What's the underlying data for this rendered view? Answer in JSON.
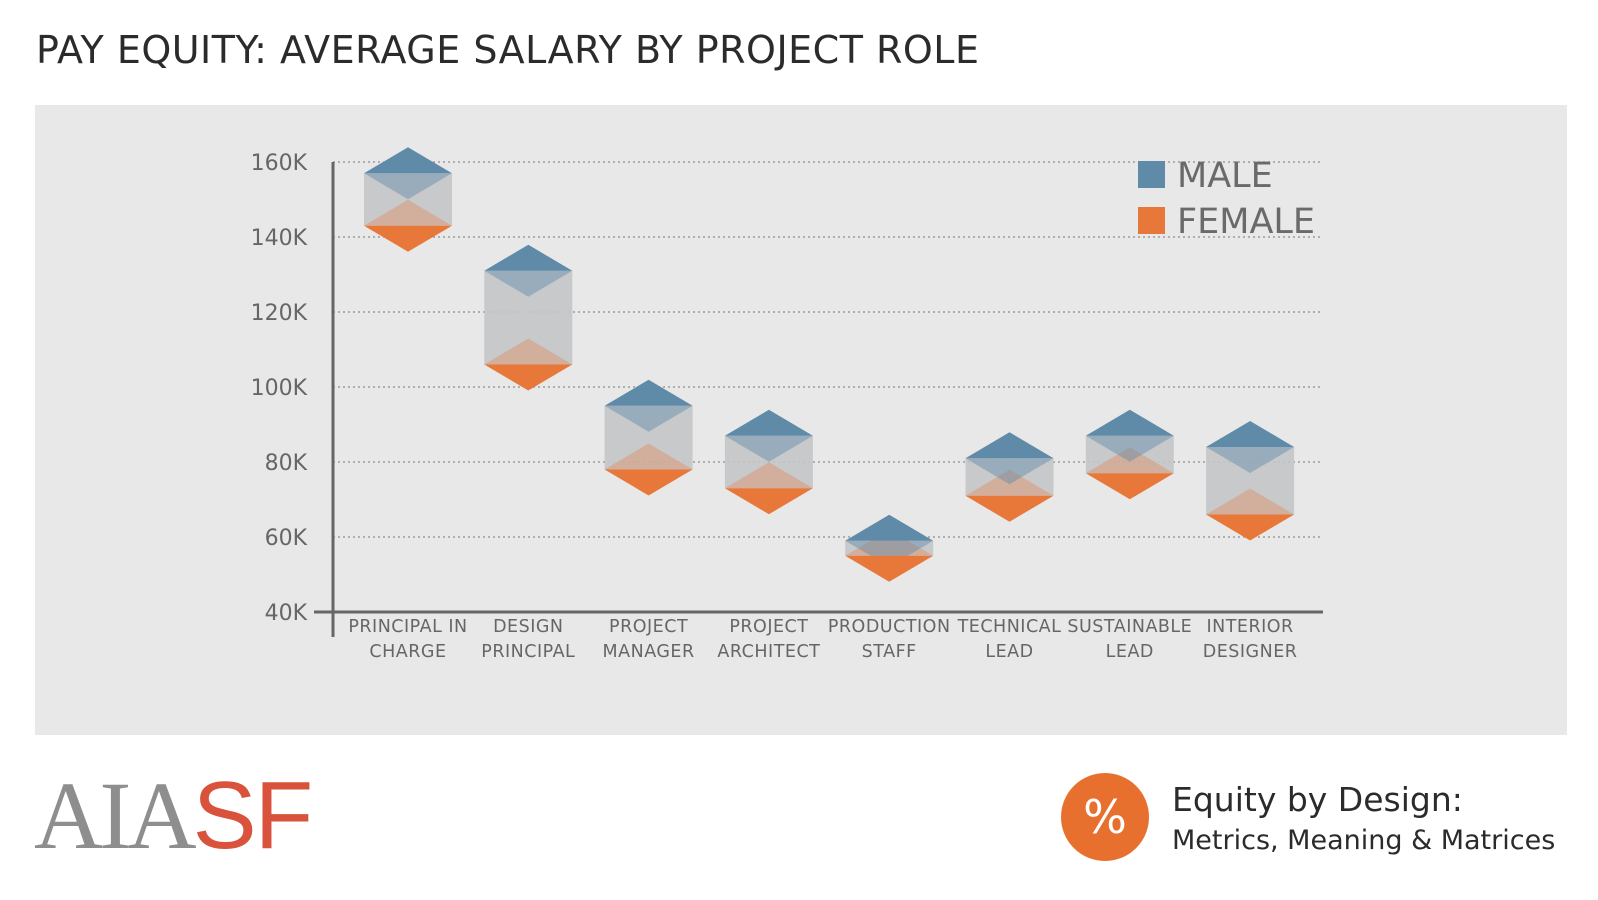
{
  "header": {
    "title": "PAY EQUITY: AVERAGE SALARY BY PROJECT ROLE"
  },
  "colors": {
    "male": "#5f8aa8",
    "female": "#e8773a",
    "gap": "#c3c5c7",
    "panel": "#e8e8e8",
    "axis": "#666666"
  },
  "chart_data": {
    "type": "bar",
    "title": "PAY EQUITY: AVERAGE SALARY BY PROJECT ROLE",
    "xlabel": "",
    "ylabel": "",
    "ylim": [
      40000,
      160000
    ],
    "yticks": [
      40000,
      60000,
      80000,
      100000,
      120000,
      140000,
      160000
    ],
    "ytick_labels": [
      "40K",
      "60K",
      "80K",
      "100K",
      "120K",
      "140K",
      "160K"
    ],
    "grid": true,
    "legend_position": "top-right",
    "categories": [
      [
        "PRINCIPAL IN",
        "CHARGE"
      ],
      [
        "DESIGN",
        "PRINCIPAL"
      ],
      [
        "PROJECT",
        "MANAGER"
      ],
      [
        "PROJECT",
        "ARCHITECT"
      ],
      [
        "PRODUCTION",
        "STAFF"
      ],
      [
        "TECHNICAL",
        "LEAD"
      ],
      [
        "SUSTAINABLE",
        "LEAD"
      ],
      [
        "INTERIOR",
        "DESIGNER"
      ]
    ],
    "series": [
      {
        "name": "MALE",
        "values": [
          157000,
          131000,
          95000,
          87000,
          59000,
          81000,
          87000,
          84000
        ]
      },
      {
        "name": "FEMALE",
        "values": [
          143000,
          106000,
          78000,
          73000,
          55000,
          71000,
          77000,
          66000
        ]
      }
    ]
  },
  "footer": {
    "logo_left": "AIA",
    "logo_right": "SF",
    "badge_symbol": "%",
    "equity_title": "Equity by Design:",
    "equity_subtitle": "Metrics, Meaning & Matrices"
  }
}
